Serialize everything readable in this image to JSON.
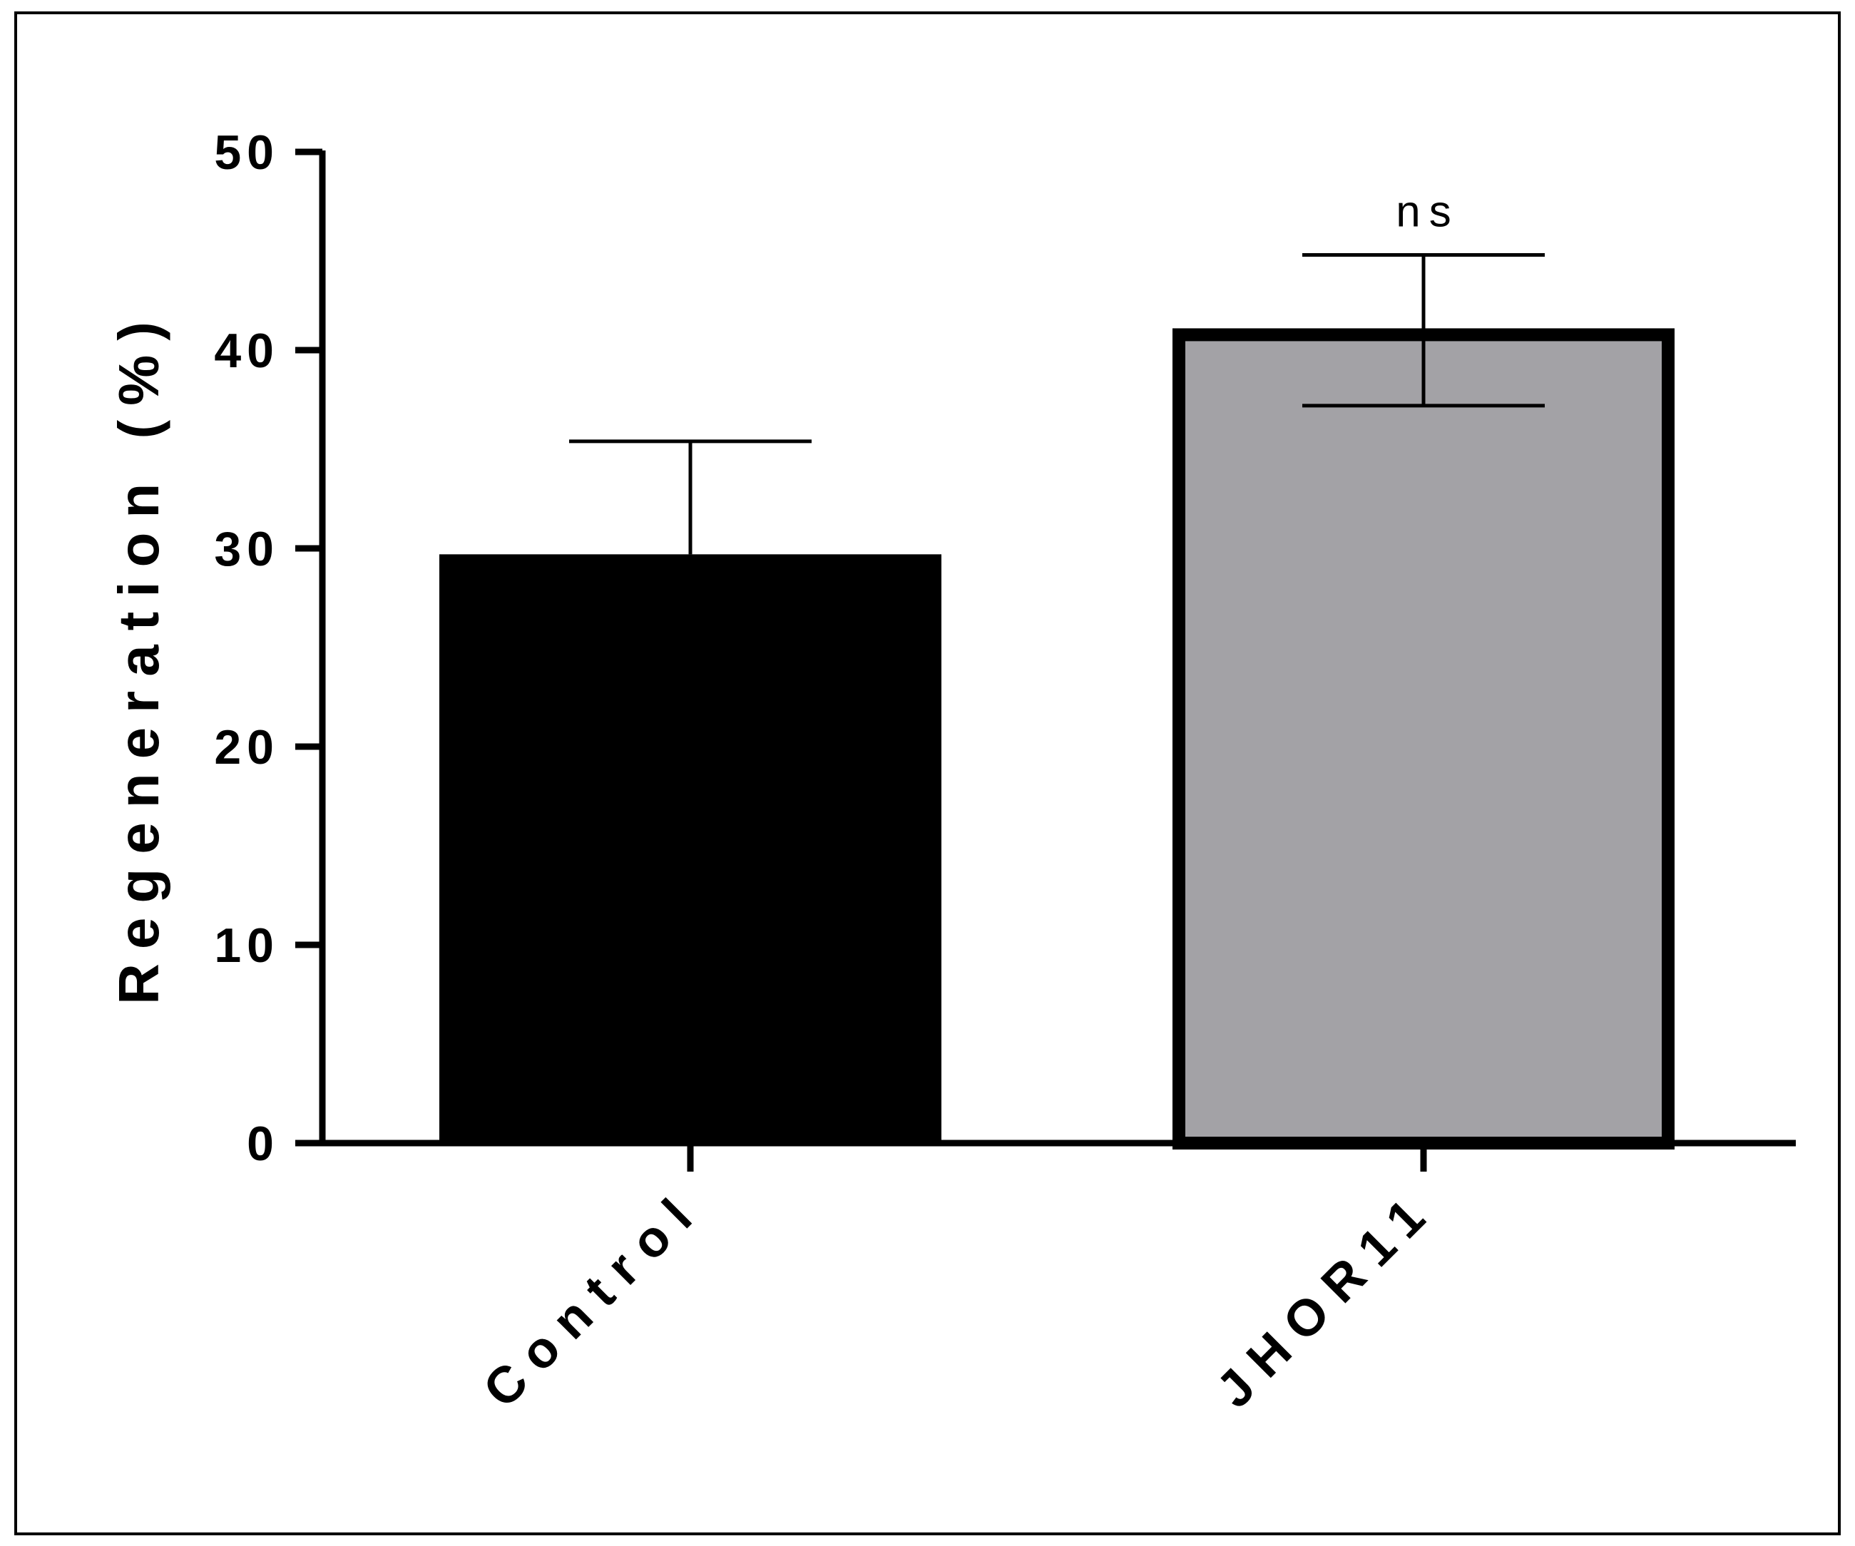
{
  "chart_data": {
    "type": "bar",
    "title": "",
    "xlabel": "",
    "ylabel": "Regeneration (%)",
    "categories": [
      "Control",
      "JHOR11"
    ],
    "values": [
      29.7,
      41.1
    ],
    "error_upper": [
      35.4,
      44.8
    ],
    "error_lower": [
      null,
      37.2
    ],
    "ylim": [
      0,
      50
    ],
    "yticks": [
      "0",
      "10",
      "20",
      "30",
      "40",
      "50"
    ],
    "annotations": [
      {
        "category": "JHOR11",
        "text": "ns"
      }
    ],
    "colors": {
      "Control": "#000000",
      "JHOR11": "#a3a2a6",
      "JHOR11_outline": "#000000"
    },
    "grid": false,
    "legend": "none"
  }
}
